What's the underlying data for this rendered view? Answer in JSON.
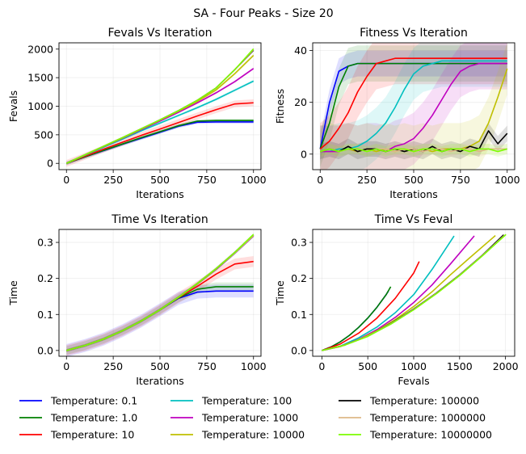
{
  "suptitle": "SA - Four Peaks - Size 20",
  "legend": {
    "placement": "bottom",
    "entries": [
      {
        "label": "Temperature: 0.1",
        "color": "#0000ff"
      },
      {
        "label": "Temperature: 1.0",
        "color": "#008000"
      },
      {
        "label": "Temperature: 10",
        "color": "#ff0000"
      },
      {
        "label": "Temperature: 100",
        "color": "#00bfbf"
      },
      {
        "label": "Temperature: 1000",
        "color": "#bf00bf"
      },
      {
        "label": "Temperature: 10000",
        "color": "#bfbf00"
      },
      {
        "label": "Temperature: 100000",
        "color": "#000000"
      },
      {
        "label": "Temperature: 1000000",
        "color": "#deb887"
      },
      {
        "label": "Temperature: 10000000",
        "color": "#7cfc00"
      }
    ]
  },
  "chart_data": [
    {
      "type": "line",
      "title": "Fevals Vs Iteration",
      "xlabel": "Iterations",
      "ylabel": "Fevals",
      "xlim": [
        -40,
        1040
      ],
      "ylim": [
        -110,
        2110
      ],
      "xticks": [
        0,
        250,
        500,
        750,
        1000
      ],
      "yticks": [
        0,
        500,
        1000,
        1500,
        2000
      ],
      "grid": true,
      "x": [
        0,
        100,
        200,
        300,
        400,
        500,
        600,
        700,
        800,
        900,
        1000
      ],
      "series": [
        {
          "label": "Temperature: 0.1",
          "color": "#0000ff",
          "values": [
            0,
            115,
            225,
            335,
            440,
            545,
            650,
            720,
            725,
            725,
            725
          ],
          "band": 30
        },
        {
          "label": "Temperature: 1.0",
          "color": "#008000",
          "values": [
            0,
            115,
            230,
            340,
            450,
            555,
            660,
            740,
            750,
            750,
            750
          ],
          "band": 30
        },
        {
          "label": "Temperature: 10",
          "color": "#ff0000",
          "values": [
            0,
            125,
            250,
            370,
            490,
            600,
            715,
            830,
            940,
            1040,
            1060
          ],
          "band": 60
        },
        {
          "label": "Temperature: 100",
          "color": "#00bfbf",
          "values": [
            0,
            140,
            285,
            425,
            570,
            705,
            840,
            975,
            1120,
            1280,
            1440
          ],
          "band": 25
        },
        {
          "label": "Temperature: 1000",
          "color": "#bf00bf",
          "values": [
            0,
            145,
            295,
            440,
            590,
            740,
            895,
            1060,
            1235,
            1430,
            1660
          ],
          "band": 20
        },
        {
          "label": "Temperature: 10000",
          "color": "#bfbf00",
          "values": [
            0,
            150,
            300,
            445,
            600,
            755,
            915,
            1085,
            1285,
            1570,
            1890
          ],
          "band": 25
        },
        {
          "label": "Temperature: 100000",
          "color": "#000000",
          "values": [
            0,
            150,
            300,
            450,
            605,
            760,
            925,
            1105,
            1320,
            1640,
            1980
          ],
          "band": 15
        },
        {
          "label": "Temperature: 1000000",
          "color": "#deb887",
          "values": [
            0,
            150,
            300,
            450,
            605,
            760,
            925,
            1105,
            1320,
            1640,
            1990
          ],
          "band": 15
        },
        {
          "label": "Temperature: 10000000",
          "color": "#7cfc00",
          "values": [
            0,
            150,
            300,
            450,
            605,
            760,
            925,
            1105,
            1320,
            1640,
            2005
          ],
          "band": 15
        }
      ]
    },
    {
      "type": "line",
      "title": "Fitness Vs Iteration",
      "xlabel": "Iterations",
      "ylabel": "Fitness",
      "xlim": [
        -40,
        1040
      ],
      "ylim": [
        -6,
        43
      ],
      "xticks": [
        0,
        250,
        500,
        750,
        1000
      ],
      "yticks": [
        0,
        20,
        40
      ],
      "grid": true,
      "x": [
        0,
        50,
        100,
        150,
        200,
        250,
        300,
        350,
        400,
        450,
        500,
        550,
        600,
        650,
        700,
        750,
        800,
        850,
        900,
        950,
        1000
      ],
      "series": [
        {
          "label": "Temperature: 0.1",
          "color": "#0000ff",
          "values": [
            2,
            20,
            32,
            34,
            35,
            35,
            35,
            35,
            35,
            35,
            35,
            35,
            35,
            35,
            35,
            35,
            35,
            35,
            35,
            35,
            35
          ],
          "band": 5
        },
        {
          "label": "Temperature: 1.0",
          "color": "#008000",
          "values": [
            2,
            12,
            26,
            34,
            35,
            35,
            35,
            35,
            35,
            35,
            35,
            35,
            35,
            35,
            35,
            35,
            35,
            35,
            35,
            35,
            35
          ],
          "band": 7
        },
        {
          "label": "Temperature: 10",
          "color": "#ff0000",
          "values": [
            2,
            5,
            10,
            16,
            24,
            30,
            35,
            36,
            37,
            37,
            37,
            37,
            37,
            37,
            37,
            37,
            37,
            37,
            37,
            37,
            37
          ],
          "band": 10
        },
        {
          "label": "Temperature: 100",
          "color": "#00bfbf",
          "values": [
            1,
            1,
            2,
            2,
            3,
            5,
            8,
            12,
            18,
            25,
            31,
            34,
            35,
            36,
            36,
            36,
            36,
            36,
            36,
            36,
            36
          ],
          "band": 10
        },
        {
          "label": "Temperature: 1000",
          "color": "#bf00bf",
          "values": [
            1,
            1,
            1,
            2,
            1,
            2,
            2,
            1,
            3,
            4,
            6,
            10,
            15,
            21,
            27,
            32,
            34,
            35,
            35,
            35,
            35
          ],
          "band": 10
        },
        {
          "label": "Temperature: 10000",
          "color": "#bfbf00",
          "values": [
            1,
            2,
            1,
            2,
            1,
            2,
            1,
            2,
            1,
            2,
            1,
            2,
            1,
            2,
            2,
            2,
            3,
            5,
            12,
            22,
            33
          ],
          "band": 10
        },
        {
          "label": "Temperature: 100000",
          "color": "#000000",
          "values": [
            1,
            2,
            1,
            3,
            1,
            2,
            2,
            1,
            2,
            1,
            2,
            1,
            3,
            1,
            2,
            1,
            3,
            2,
            9,
            4,
            8
          ],
          "band": 3
        },
        {
          "label": "Temperature: 1000000",
          "color": "#deb887",
          "values": [
            1,
            2,
            1,
            2,
            2,
            1,
            2,
            2,
            1,
            2,
            2,
            1,
            2,
            2,
            1,
            2,
            2,
            1,
            2,
            2,
            2
          ],
          "band": 2
        },
        {
          "label": "Temperature: 10000000",
          "color": "#7cfc00",
          "values": [
            1,
            2,
            1,
            2,
            2,
            1,
            2,
            1,
            2,
            2,
            1,
            2,
            2,
            1,
            2,
            2,
            1,
            2,
            2,
            1,
            2
          ],
          "band": 2
        }
      ]
    },
    {
      "type": "line",
      "title": "Time Vs Iteration",
      "xlabel": "Iterations",
      "ylabel": "Time",
      "xlim": [
        -40,
        1040
      ],
      "ylim": [
        -0.016,
        0.336
      ],
      "xticks": [
        0,
        250,
        500,
        750,
        1000
      ],
      "yticks": [
        0.0,
        0.1,
        0.2,
        0.3
      ],
      "grid": true,
      "x": [
        0,
        100,
        200,
        300,
        400,
        500,
        600,
        700,
        800,
        900,
        1000
      ],
      "series": [
        {
          "label": "Temperature: 0.1",
          "color": "#0000ff",
          "values": [
            0,
            0.014,
            0.032,
            0.055,
            0.082,
            0.113,
            0.145,
            0.162,
            0.165,
            0.165,
            0.165
          ],
          "band": 0.018
        },
        {
          "label": "Temperature: 1.0",
          "color": "#008000",
          "values": [
            0,
            0.014,
            0.032,
            0.055,
            0.082,
            0.113,
            0.146,
            0.17,
            0.177,
            0.177,
            0.177
          ],
          "band": 0.012
        },
        {
          "label": "Temperature: 10",
          "color": "#ff0000",
          "values": [
            0,
            0.014,
            0.032,
            0.055,
            0.082,
            0.113,
            0.147,
            0.178,
            0.212,
            0.24,
            0.247
          ],
          "band": 0.015
        },
        {
          "label": "Temperature: 100",
          "color": "#00bfbf",
          "values": [
            0,
            0.014,
            0.032,
            0.055,
            0.082,
            0.113,
            0.148,
            0.185,
            0.225,
            0.27,
            0.318
          ],
          "band": 0.004
        },
        {
          "label": "Temperature: 1000",
          "color": "#bf00bf",
          "values": [
            0,
            0.014,
            0.032,
            0.055,
            0.082,
            0.113,
            0.148,
            0.185,
            0.225,
            0.27,
            0.318
          ],
          "band": 0.004
        },
        {
          "label": "Temperature: 10000",
          "color": "#bfbf00",
          "values": [
            0,
            0.014,
            0.032,
            0.055,
            0.082,
            0.113,
            0.148,
            0.185,
            0.226,
            0.271,
            0.319
          ],
          "band": 0.004
        },
        {
          "label": "Temperature: 100000",
          "color": "#000000",
          "values": [
            0,
            0.014,
            0.032,
            0.055,
            0.082,
            0.113,
            0.148,
            0.186,
            0.227,
            0.272,
            0.321
          ],
          "band": 0.004
        },
        {
          "label": "Temperature: 1000000",
          "color": "#deb887",
          "values": [
            0,
            0.014,
            0.032,
            0.055,
            0.082,
            0.113,
            0.148,
            0.186,
            0.227,
            0.271,
            0.32
          ],
          "band": 0.004
        },
        {
          "label": "Temperature: 10000000",
          "color": "#7cfc00",
          "values": [
            0,
            0.014,
            0.032,
            0.055,
            0.082,
            0.113,
            0.148,
            0.186,
            0.227,
            0.272,
            0.322
          ],
          "band": 0.004
        }
      ]
    },
    {
      "type": "line",
      "title": "Time Vs Feval",
      "xlabel": "Fevals",
      "ylabel": "Time",
      "xlim": [
        -100,
        2100
      ],
      "ylim": [
        -0.016,
        0.336
      ],
      "xticks": [
        0,
        500,
        1000,
        1500,
        2000
      ],
      "yticks": [
        0.0,
        0.1,
        0.2,
        0.3
      ],
      "grid": true,
      "series": [
        {
          "label": "Temperature: 0.1",
          "color": "#0000ff",
          "x": [
            0,
            100,
            200,
            300,
            400,
            500,
            600,
            700,
            725
          ],
          "values": [
            0,
            0.01,
            0.024,
            0.042,
            0.064,
            0.09,
            0.12,
            0.155,
            0.165
          ]
        },
        {
          "label": "Temperature: 1.0",
          "color": "#008000",
          "x": [
            0,
            100,
            200,
            300,
            400,
            500,
            600,
            700,
            750
          ],
          "values": [
            0,
            0.01,
            0.024,
            0.042,
            0.064,
            0.09,
            0.12,
            0.155,
            0.177
          ]
        },
        {
          "label": "Temperature: 10",
          "color": "#ff0000",
          "x": [
            0,
            200,
            400,
            600,
            800,
            1000,
            1060
          ],
          "values": [
            0,
            0.018,
            0.048,
            0.09,
            0.145,
            0.215,
            0.247
          ]
        },
        {
          "label": "Temperature: 100",
          "color": "#00bfbf",
          "x": [
            0,
            200,
            400,
            600,
            800,
            1000,
            1200,
            1440
          ],
          "values": [
            0,
            0.012,
            0.035,
            0.065,
            0.105,
            0.155,
            0.225,
            0.318
          ]
        },
        {
          "label": "Temperature: 1000",
          "color": "#bf00bf",
          "x": [
            0,
            200,
            400,
            600,
            800,
            1000,
            1200,
            1400,
            1660
          ],
          "values": [
            0,
            0.011,
            0.031,
            0.058,
            0.092,
            0.133,
            0.182,
            0.24,
            0.318
          ]
        },
        {
          "label": "Temperature: 10000",
          "color": "#bfbf00",
          "x": [
            0,
            200,
            400,
            600,
            800,
            1000,
            1200,
            1400,
            1600,
            1890
          ],
          "values": [
            0,
            0.011,
            0.03,
            0.055,
            0.086,
            0.122,
            0.163,
            0.21,
            0.255,
            0.319
          ]
        },
        {
          "label": "Temperature: 100000",
          "color": "#000000",
          "x": [
            0,
            250,
            500,
            750,
            1000,
            1250,
            1500,
            1750,
            1980
          ],
          "values": [
            0,
            0.015,
            0.04,
            0.075,
            0.115,
            0.16,
            0.21,
            0.265,
            0.321
          ]
        },
        {
          "label": "Temperature: 1000000",
          "color": "#deb887",
          "x": [
            0,
            250,
            500,
            750,
            1000,
            1250,
            1500,
            1750,
            1990
          ],
          "values": [
            0,
            0.015,
            0.04,
            0.074,
            0.114,
            0.159,
            0.209,
            0.264,
            0.32
          ]
        },
        {
          "label": "Temperature: 10000000",
          "color": "#7cfc00",
          "x": [
            0,
            250,
            500,
            750,
            1000,
            1250,
            1500,
            1750,
            2005
          ],
          "values": [
            0,
            0.015,
            0.039,
            0.073,
            0.113,
            0.158,
            0.208,
            0.263,
            0.322
          ]
        }
      ]
    }
  ]
}
